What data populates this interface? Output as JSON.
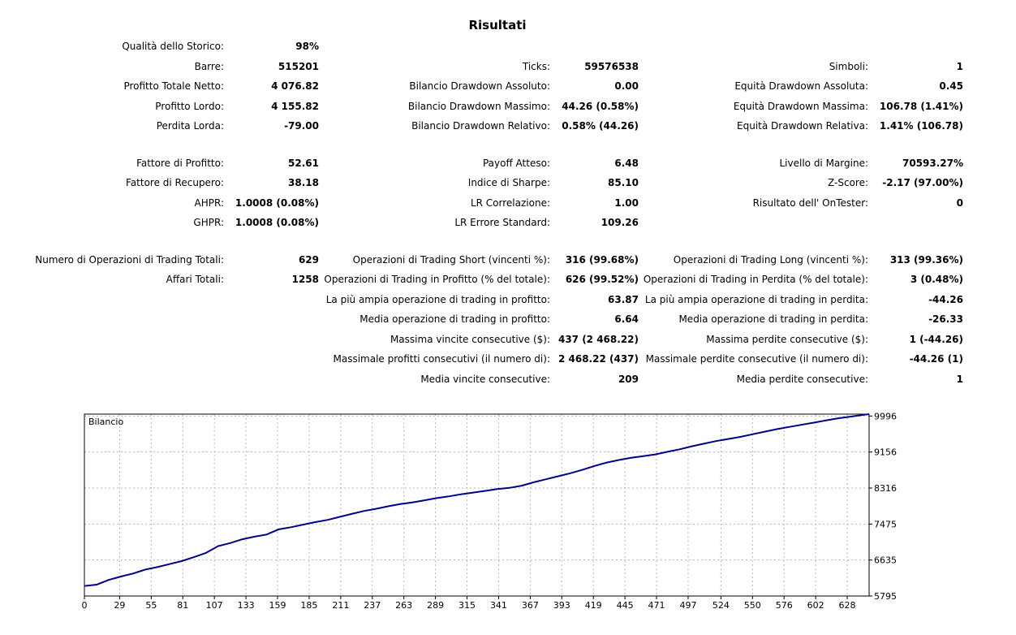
{
  "title": "Risultati",
  "stats": [
    {
      "id": "qualita-storico",
      "label": "Qualità dello Storico:",
      "value": "98%"
    },
    {
      "id": "barre",
      "label": "Barre:",
      "value": "515201"
    },
    {
      "id": "ticks",
      "label": "Ticks:",
      "value": "59576538"
    },
    {
      "id": "simboli",
      "label": "Simboli:",
      "value": "1"
    },
    {
      "id": "profitto-totale-netto",
      "label": "Profitto Totale Netto:",
      "value": "4 076.82"
    },
    {
      "id": "bilancio-dd-assoluto",
      "label": "Bilancio Drawdown Assoluto:",
      "value": "0.00"
    },
    {
      "id": "equita-dd-assoluta",
      "label": "Equità Drawdown Assoluta:",
      "value": "0.45"
    },
    {
      "id": "profitto-lordo",
      "label": "Profitto Lordo:",
      "value": "4 155.82"
    },
    {
      "id": "bilancio-dd-massimo",
      "label": "Bilancio Drawdown Massimo:",
      "value": "44.26 (0.58%)"
    },
    {
      "id": "equita-dd-massima",
      "label": "Equità Drawdown Massima:",
      "value": "106.78 (1.41%)"
    },
    {
      "id": "perdita-lorda",
      "label": "Perdita Lorda:",
      "value": "-79.00"
    },
    {
      "id": "bilancio-dd-relativo",
      "label": "Bilancio Drawdown Relativo:",
      "value": "0.58% (44.26)"
    },
    {
      "id": "equita-dd-relativa",
      "label": "Equità Drawdown Relativa:",
      "value": "1.41% (106.78)"
    },
    {
      "id": "fattore-profitto",
      "label": "Fattore di Profitto:",
      "value": "52.61"
    },
    {
      "id": "payoff-atteso",
      "label": "Payoff Atteso:",
      "value": "6.48"
    },
    {
      "id": "livello-margine",
      "label": "Livello di Margine:",
      "value": "70593.27%"
    },
    {
      "id": "fattore-recupero",
      "label": "Fattore di Recupero:",
      "value": "38.18"
    },
    {
      "id": "indice-sharpe",
      "label": "Indice di Sharpe:",
      "value": "85.10"
    },
    {
      "id": "z-score",
      "label": "Z-Score:",
      "value": "-2.17 (97.00%)"
    },
    {
      "id": "ahpr",
      "label": "AHPR:",
      "value": "1.0008 (0.08%)"
    },
    {
      "id": "lr-correlazione",
      "label": "LR Correlazione:",
      "value": "1.00"
    },
    {
      "id": "risultato-ontester",
      "label": "Risultato dell' OnTester:",
      "value": "0"
    },
    {
      "id": "ghpr",
      "label": "GHPR:",
      "value": "1.0008 (0.08%)"
    },
    {
      "id": "lr-errore-standard",
      "label": "LR Errore Standard:",
      "value": "109.26"
    },
    {
      "id": "operazioni-totali",
      "label": "Numero di Operazioni di Trading Totali:",
      "value": "629"
    },
    {
      "id": "operazioni-short",
      "label": "Operazioni di Trading Short (vincenti %):",
      "value": "316 (99.68%)"
    },
    {
      "id": "operazioni-long",
      "label": "Operazioni di Trading Long (vincenti %):",
      "value": "313 (99.36%)"
    },
    {
      "id": "affari-totali",
      "label": "Affari Totali:",
      "value": "1258"
    },
    {
      "id": "operazioni-profitto",
      "label": "Operazioni di Trading in Profitto (% del totale):",
      "value": "626 (99.52%)"
    },
    {
      "id": "operazioni-perdita",
      "label": "Operazioni di Trading in Perdita (% del totale):",
      "value": "3 (0.48%)"
    },
    {
      "id": "piu-ampia-profitto",
      "label": "La più ampia operazione di trading in profitto:",
      "value": "63.87"
    },
    {
      "id": "piu-ampia-perdita",
      "label": "La più ampia operazione di trading in perdita:",
      "value": "-44.26"
    },
    {
      "id": "media-profitto",
      "label": "Media operazione di trading in profitto:",
      "value": "6.64"
    },
    {
      "id": "media-perdita",
      "label": "Media operazione di trading in perdita:",
      "value": "-26.33"
    },
    {
      "id": "massima-vincite-consecutive",
      "label": "Massima vincite consecutive ($):",
      "value": "437 (2 468.22)"
    },
    {
      "id": "massima-perdite-consecutive",
      "label": "Massima perdite consecutive ($):",
      "value": "1 (-44.26)"
    },
    {
      "id": "massimale-profitti-consecutivi",
      "label": "Massimale profitti consecutivi (il numero di):",
      "value": "2 468.22 (437)"
    },
    {
      "id": "massimale-perdite-consecutive",
      "label": "Massimale perdite consecutive (il numero di):",
      "value": "-44.26 (1)"
    },
    {
      "id": "media-vincite-consecutive",
      "label": "Media vincite consecutive:",
      "value": "209"
    },
    {
      "id": "media-perdite-consecutive",
      "label": "Media perdite consecutive:",
      "value": "1"
    }
  ],
  "chart_data": {
    "type": "line",
    "title": "Bilancio",
    "xlabel": "",
    "ylabel": "",
    "x_ticks": [
      0,
      29,
      55,
      81,
      107,
      133,
      159,
      185,
      211,
      237,
      263,
      289,
      315,
      341,
      367,
      393,
      419,
      445,
      471,
      497,
      524,
      550,
      576,
      602,
      628
    ],
    "y_ticks": [
      5795,
      6635,
      7475,
      8316,
      9156,
      9996
    ],
    "xlim": [
      0,
      646
    ],
    "ylim": [
      5795,
      10040
    ],
    "grid": true,
    "series": [
      {
        "color": "#00008b",
        "x": [
          0,
          10,
          20,
          30,
          40,
          50,
          60,
          70,
          80,
          90,
          100,
          110,
          120,
          130,
          140,
          150,
          160,
          170,
          180,
          190,
          200,
          210,
          220,
          230,
          240,
          250,
          260,
          270,
          280,
          290,
          300,
          310,
          320,
          330,
          340,
          350,
          360,
          370,
          380,
          390,
          400,
          410,
          420,
          430,
          440,
          450,
          460,
          470,
          480,
          490,
          500,
          510,
          520,
          530,
          540,
          550,
          560,
          570,
          580,
          590,
          600,
          610,
          620,
          630,
          640,
          646
        ],
        "y": [
          6030,
          6060,
          6170,
          6250,
          6320,
          6410,
          6470,
          6540,
          6610,
          6700,
          6800,
          6960,
          7030,
          7120,
          7180,
          7230,
          7350,
          7400,
          7460,
          7520,
          7570,
          7640,
          7710,
          7780,
          7830,
          7890,
          7940,
          7980,
          8030,
          8080,
          8120,
          8170,
          8210,
          8250,
          8290,
          8320,
          8370,
          8450,
          8520,
          8590,
          8660,
          8740,
          8830,
          8910,
          8970,
          9020,
          9060,
          9100,
          9160,
          9220,
          9290,
          9350,
          9410,
          9460,
          9510,
          9570,
          9630,
          9690,
          9740,
          9790,
          9840,
          9890,
          9940,
          9980,
          10020,
          10040
        ]
      }
    ]
  }
}
